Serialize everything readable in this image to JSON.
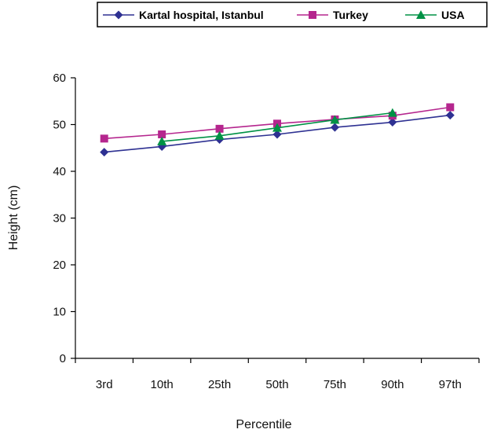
{
  "chart_data": {
    "type": "line",
    "title": "",
    "xlabel": "Percentile",
    "ylabel": "Height (cm)",
    "categories": [
      "3rd",
      "10th",
      "25th",
      "50th",
      "75th",
      "90th",
      "97th"
    ],
    "ylim": [
      0,
      60
    ],
    "yticks": [
      0,
      10,
      20,
      30,
      40,
      50,
      60
    ],
    "grid": false,
    "legend_position": "top",
    "series": [
      {
        "name": "Kartal hospital, Istanbul",
        "color": "#2E3192",
        "marker": "diamond",
        "values": [
          44.1,
          45.3,
          46.8,
          47.9,
          49.4,
          50.5,
          52.0
        ]
      },
      {
        "name": "Turkey",
        "color": "#B5268E",
        "marker": "square",
        "values": [
          47.0,
          47.9,
          49.1,
          50.2,
          51.1,
          51.9,
          53.7
        ]
      },
      {
        "name": "USA",
        "color": "#009245",
        "marker": "triangle",
        "values": [
          null,
          46.4,
          47.6,
          49.3,
          51.0,
          52.5,
          null
        ]
      }
    ]
  }
}
